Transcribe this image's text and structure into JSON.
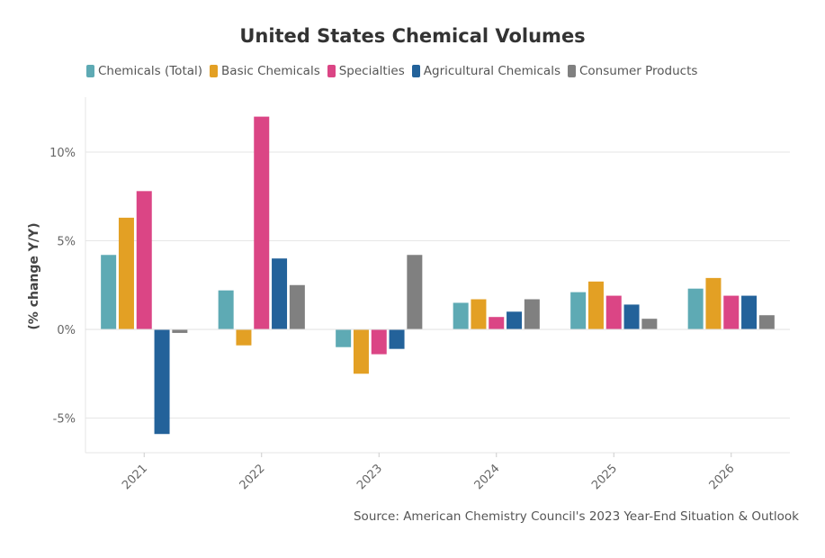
{
  "chart_data": {
    "type": "bar",
    "title": "United States Chemical Volumes",
    "xlabel": "",
    "ylabel": "(% change Y/Y)",
    "ylim": [
      -7,
      13
    ],
    "yticks": [
      -5,
      0,
      5,
      10
    ],
    "ytick_labels": [
      "-5%",
      "0%",
      "5%",
      "10%"
    ],
    "categories": [
      "2021",
      "2022",
      "2023",
      "2024",
      "2025",
      "2026"
    ],
    "series": [
      {
        "name": "Chemicals (Total)",
        "color": "#5eaab4",
        "values": [
          4.2,
          2.2,
          -1.0,
          1.5,
          2.1,
          2.3
        ]
      },
      {
        "name": "Basic Chemicals",
        "color": "#e3a024",
        "values": [
          6.3,
          -0.9,
          -2.5,
          1.7,
          2.7,
          2.9
        ]
      },
      {
        "name": "Specialties",
        "color": "#db4585",
        "values": [
          7.8,
          12.0,
          -1.4,
          0.7,
          1.9,
          1.9
        ]
      },
      {
        "name": "Agricultural Chemicals",
        "color": "#23629a",
        "values": [
          -5.9,
          4.0,
          -1.1,
          1.0,
          1.4,
          1.9
        ]
      },
      {
        "name": "Consumer Products",
        "color": "#808080",
        "values": [
          -0.2,
          2.5,
          4.2,
          1.7,
          0.6,
          0.8
        ]
      }
    ],
    "grid": true,
    "legend_position": "top",
    "source": "Source: American Chemistry Council's 2023 Year-End Situation & Outlook"
  }
}
